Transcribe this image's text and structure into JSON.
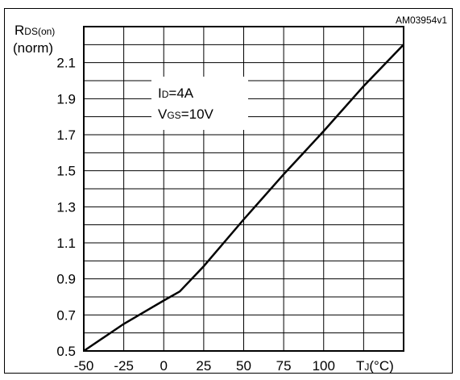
{
  "chart_data": {
    "type": "line",
    "reference_code": "AM03954v1",
    "ylabel": {
      "main": "R",
      "sub": "DS(on)",
      "unit": "(norm)"
    },
    "xlabel": {
      "main": "T",
      "sub": "J",
      "unit": "(°C)"
    },
    "annotation": {
      "line1": {
        "main": "I",
        "sub": "D",
        "rest": "=4A"
      },
      "line2": {
        "main": "V",
        "sub": "GS",
        "rest": "=10V"
      }
    },
    "xlim": [
      -50,
      150
    ],
    "ylim": [
      0.5,
      2.3
    ],
    "x_tick_labels": [
      "-50",
      "-25",
      "0",
      "25",
      "50",
      "75",
      "100"
    ],
    "x_tick_values": [
      -50,
      -25,
      0,
      25,
      50,
      75,
      100
    ],
    "y_tick_labels": [
      "0.5",
      "0.7",
      "0.9",
      "1.1",
      "1.3",
      "1.5",
      "1.7",
      "1.9",
      "2.1"
    ],
    "y_tick_values": [
      0.5,
      0.7,
      0.9,
      1.1,
      1.3,
      1.5,
      1.7,
      1.9,
      2.1
    ],
    "grid": true,
    "series": [
      {
        "x": [
          -50,
          -25,
          0,
          10,
          25,
          50,
          75,
          100,
          125,
          150
        ],
        "values": [
          0.5,
          0.65,
          0.78,
          0.83,
          0.97,
          1.23,
          1.48,
          1.72,
          1.97,
          2.2
        ]
      }
    ]
  }
}
